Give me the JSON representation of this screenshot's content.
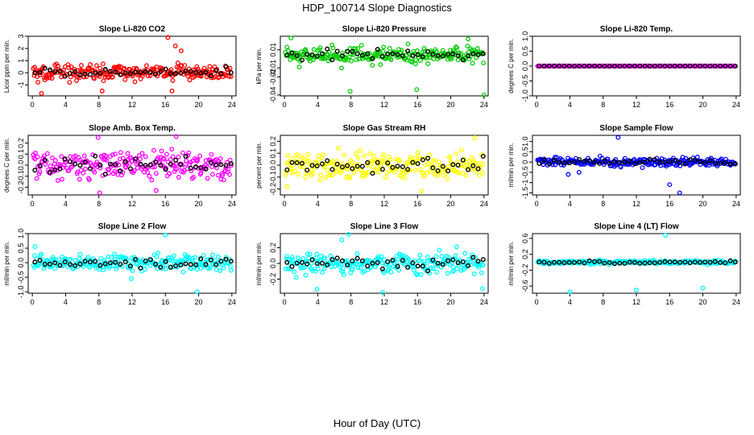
{
  "title": "HDP_100714  Slope Diagnostics",
  "xlabel": "Hour of Day (UTC)",
  "chart_data": [
    {
      "type": "scatter",
      "title": "Slope Li-820 CO2",
      "ylabel": "Licor ppm per min.",
      "color": "#ff0000",
      "xlim": [
        -0.5,
        24.5
      ],
      "ylim": [
        -1.9,
        3.0
      ],
      "xticks": [
        0,
        4,
        8,
        12,
        16,
        20,
        24
      ],
      "yticks": [
        -1,
        0,
        1,
        2,
        3
      ],
      "ytick_labels": [
        "-1",
        "0",
        "1",
        "2",
        "3"
      ],
      "spread": 0.55,
      "outliers": [
        [
          16.3,
          2.9
        ],
        [
          17.2,
          2.2
        ],
        [
          17.9,
          1.8
        ],
        [
          16.8,
          -1.5
        ],
        [
          1.1,
          -1.7
        ],
        [
          8.4,
          -1.5
        ]
      ]
    },
    {
      "type": "scatter",
      "title": "Slope Li-820 Pressure",
      "ylabel": "kPa per min.",
      "color": "#00cc00",
      "xlim": [
        -0.5,
        24.5
      ],
      "ylim": [
        -0.041,
        0.025
      ],
      "xticks": [
        0,
        4,
        8,
        12,
        16,
        20,
        24
      ],
      "yticks": [
        -0.04,
        -0.02,
        -0.01,
        0.01
      ],
      "ytick_labels": [
        "-0.04",
        "-0.02",
        "-0.01",
        "0.01"
      ],
      "spread": 0.007,
      "center": 0.004,
      "outliers": [
        [
          7.9,
          -0.036
        ],
        [
          15.9,
          -0.034
        ],
        [
          24.0,
          -0.04
        ],
        [
          0.8,
          0.023
        ],
        [
          22.1,
          0.022
        ]
      ]
    },
    {
      "type": "scatter",
      "title": "Slope Li-820 Temp.",
      "ylabel": "degrees C per min.",
      "color": "#ff00ff",
      "xlim": [
        -0.5,
        24.5
      ],
      "ylim": [
        -1.0,
        1.0
      ],
      "xticks": [
        0,
        4,
        8,
        12,
        16,
        20,
        24
      ],
      "yticks": [
        -1.0,
        -0.5,
        0.0,
        0.5,
        1.0
      ],
      "ytick_labels": [
        "-1.0",
        "-0.5",
        "0.0",
        "0.5",
        "1.0"
      ],
      "spread": 0.003,
      "outliers": []
    },
    {
      "type": "scatter",
      "title": "Slope Amb. Box Temp.",
      "ylabel": "degrees C per min.",
      "color": "#ff00ff",
      "xlim": [
        -0.5,
        24.5
      ],
      "ylim": [
        -0.27,
        0.27
      ],
      "xticks": [
        0,
        4,
        8,
        12,
        16,
        20,
        24
      ],
      "yticks": [
        -0.2,
        -0.1,
        0.0,
        0.1,
        0.2
      ],
      "ytick_labels": [
        "-0.2",
        "-0.1",
        "0.0",
        "0.1",
        "0.2"
      ],
      "spread": 0.1,
      "outliers": [
        [
          8.1,
          -0.25
        ],
        [
          14.9,
          -0.23
        ],
        [
          17.3,
          0.26
        ],
        [
          7.9,
          0.25
        ]
      ]
    },
    {
      "type": "scatter",
      "title": "Slope Gas Stream RH",
      "ylabel": "percent per min.",
      "color": "#ffff00",
      "xlim": [
        -0.5,
        24.5
      ],
      "ylim": [
        -0.25,
        0.25
      ],
      "xticks": [
        0,
        4,
        8,
        12,
        16,
        20,
        24
      ],
      "yticks": [
        -0.2,
        -0.1,
        0.0,
        0.1,
        0.2
      ],
      "ytick_labels": [
        "-0.2",
        "-0.1",
        "0.0",
        "0.1",
        "0.2"
      ],
      "spread": 0.09,
      "outliers": [
        [
          16.5,
          -0.22
        ],
        [
          0.3,
          -0.18
        ],
        [
          22.9,
          0.23
        ]
      ]
    },
    {
      "type": "scatter",
      "title": "Slope Sample Flow",
      "ylabel": "ml/min per min.",
      "color": "#0000ff",
      "xlim": [
        -0.5,
        24.5
      ],
      "ylim": [
        -1.6,
        1.3
      ],
      "xticks": [
        0,
        4,
        8,
        12,
        16,
        20,
        24
      ],
      "yticks": [
        -1.5,
        -1.0,
        -0.5,
        0.0,
        0.5,
        1.0
      ],
      "ytick_labels": [
        "-1.5",
        "-1",
        "-0.5",
        "0",
        "0.5",
        "1.0"
      ],
      "spread": 0.17,
      "outliers": [
        [
          9.8,
          1.2
        ],
        [
          17.2,
          -1.5
        ],
        [
          16.0,
          -1.1
        ],
        [
          3.8,
          -0.6
        ],
        [
          5.1,
          -0.5
        ]
      ]
    },
    {
      "type": "scatter",
      "title": "Slope Line 2 Flow",
      "ylabel": "ml/min per min.",
      "color": "#00ffff",
      "xlim": [
        -0.5,
        24.5
      ],
      "ylim": [
        -1.05,
        1.0
      ],
      "xticks": [
        0,
        4,
        8,
        12,
        16,
        20,
        24
      ],
      "yticks": [
        -1.0,
        -0.5,
        0.0,
        0.5,
        1.0
      ],
      "ytick_labels": [
        "-1.0",
        "-0.5",
        "0.0",
        "0.5",
        "1.0"
      ],
      "spread": 0.22,
      "outliers": [
        [
          16.0,
          0.95
        ],
        [
          19.8,
          -1.0
        ],
        [
          11.9,
          -0.55
        ],
        [
          0.3,
          0.55
        ]
      ]
    },
    {
      "type": "scatter",
      "title": "Slope Line 3 Flow",
      "ylabel": "ml/min per min.",
      "color": "#00ffff",
      "xlim": [
        -0.5,
        24.5
      ],
      "ylim": [
        -0.38,
        0.38
      ],
      "xticks": [
        0,
        4,
        8,
        12,
        16,
        20,
        24
      ],
      "yticks": [
        -0.2,
        0.0,
        0.2
      ],
      "ytick_labels": [
        "-0.2",
        "0.0",
        "0.2"
      ],
      "spread": 0.12,
      "outliers": [
        [
          7.7,
          0.37
        ],
        [
          11.8,
          -0.37
        ],
        [
          3.9,
          -0.33
        ],
        [
          6.9,
          0.3
        ],
        [
          23.8,
          -0.32
        ]
      ]
    },
    {
      "type": "scatter",
      "title": "Slope Line 4 (LT) Flow",
      "ylabel": "ml/min per min.",
      "color": "#00ffff",
      "xlim": [
        -0.5,
        24.5
      ],
      "ylim": [
        -0.78,
        0.72
      ],
      "xticks": [
        0,
        4,
        8,
        12,
        16,
        20,
        24
      ],
      "yticks": [
        -0.6,
        -0.2,
        0.2,
        0.6
      ],
      "ytick_labels": [
        "-0.6",
        "-0.2",
        "0.2",
        "0.6"
      ],
      "spread": 0.04,
      "outliers": [
        [
          15.5,
          0.68
        ],
        [
          4.0,
          -0.75
        ],
        [
          12.0,
          -0.7
        ],
        [
          20.0,
          -0.65
        ]
      ]
    }
  ]
}
